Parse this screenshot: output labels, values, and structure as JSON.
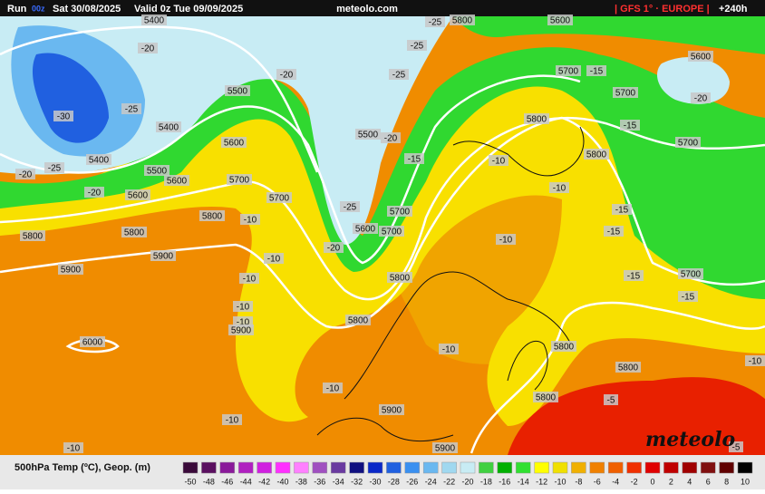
{
  "header": {
    "run_label": "Run",
    "run": "00z",
    "run_date": "Sat 30/08/2025",
    "valid": "Valid 0z Tue 09/09/2025",
    "site": "meteolo.com",
    "model": "| GFS 1° · EUROPE |",
    "lead": "+240h"
  },
  "contour_labels": [
    5400,
    5800,
    5600,
    -25,
    -20,
    -25,
    -20,
    -25,
    5500,
    5700,
    -15,
    5700,
    5600,
    -20,
    -30,
    -25,
    5400,
    5500,
    -20,
    5800,
    -15,
    5600,
    5400,
    5500,
    -15,
    -10,
    5800,
    5700,
    -20,
    -25,
    5600,
    5700,
    -10,
    -20,
    5600,
    5700,
    -25,
    5700,
    -15,
    5800,
    -10,
    5600,
    5700,
    -10,
    -15,
    5800,
    5800,
    -20,
    5900,
    -10,
    5900,
    5800,
    -15,
    5700,
    -10,
    -15,
    -10,
    -10,
    5800,
    5900,
    6000,
    -10,
    5800,
    5800,
    -10,
    -10,
    5800,
    -5,
    5900,
    -10,
    -10,
    5900,
    -5
  ],
  "logo": "meteolo",
  "legend": {
    "title": "500hPa Temp (ºC), Geop. (m)",
    "stops": [
      -50,
      -48,
      -46,
      -44,
      -42,
      -40,
      -38,
      -36,
      -34,
      -32,
      -30,
      -28,
      -26,
      -24,
      -22,
      -20,
      -18,
      -16,
      -14,
      -12,
      -10,
      -8,
      -6,
      -4,
      -2,
      0,
      2,
      4,
      6,
      8,
      10
    ],
    "colors": [
      "#3a0a3a",
      "#5a1060",
      "#8a1a9a",
      "#b020c0",
      "#d020e0",
      "#ff30ff",
      "#ff80ff",
      "#a050c0",
      "#6a3aa0",
      "#101080",
      "#0a28c8",
      "#2060e0",
      "#3a90f0",
      "#6ab8f0",
      "#a0d8f0",
      "#c8ecf4",
      "#40d040",
      "#00b000",
      "#30e030",
      "#ffff00",
      "#f0e000",
      "#f0b000",
      "#f08000",
      "#f06000",
      "#f03000",
      "#e00000",
      "#c00000",
      "#a00000",
      "#801010",
      "#600000",
      "#000000"
    ]
  }
}
